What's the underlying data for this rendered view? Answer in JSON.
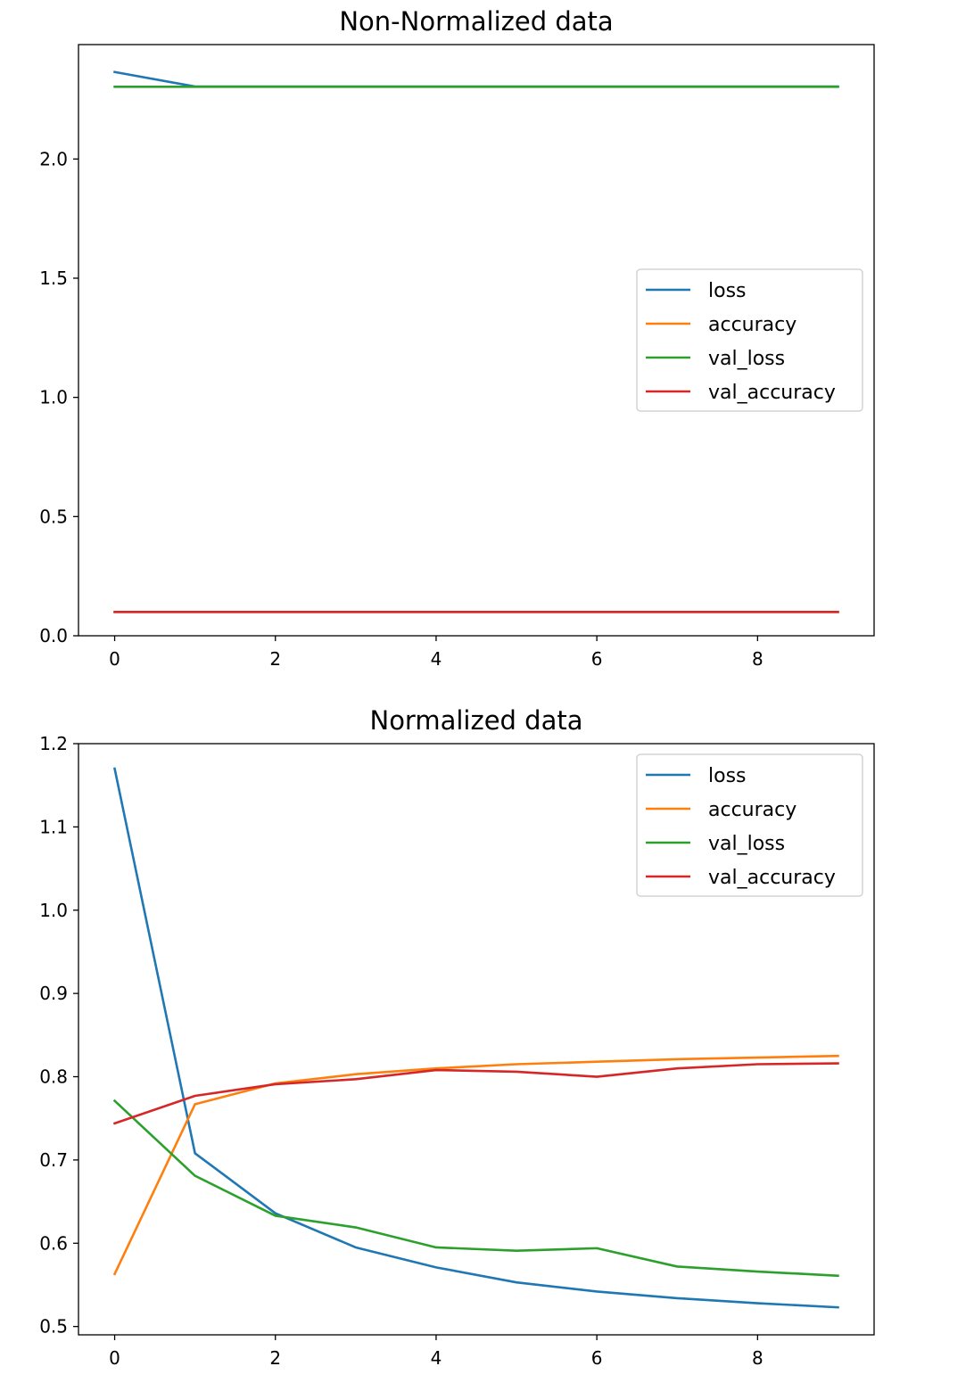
{
  "chart_data": [
    {
      "type": "line",
      "title": "Non-Normalized data",
      "xlabel": "",
      "ylabel": "",
      "x": [
        0,
        1,
        2,
        3,
        4,
        5,
        6,
        7,
        8,
        9
      ],
      "xlim": [
        -0.45,
        9.45
      ],
      "ylim": [
        0,
        2.48
      ],
      "xticks": [
        0,
        2,
        4,
        6,
        8
      ],
      "yticks": [
        0.0,
        0.5,
        1.0,
        1.5,
        2.0
      ],
      "xtick_labels": [
        "0",
        "2",
        "4",
        "6",
        "8"
      ],
      "ytick_labels": [
        "0.0",
        "0.5",
        "1.0",
        "1.5",
        "2.0"
      ],
      "grid": false,
      "legend_position": "center-right",
      "series": [
        {
          "name": "loss",
          "color": "#1f77b4",
          "values": [
            2.365,
            2.304,
            2.304,
            2.304,
            2.304,
            2.304,
            2.304,
            2.304,
            2.304,
            2.304
          ]
        },
        {
          "name": "accuracy",
          "color": "#ff7f0e",
          "values": [
            0.1,
            0.1,
            0.1,
            0.1,
            0.1,
            0.1,
            0.1,
            0.1,
            0.1,
            0.1
          ]
        },
        {
          "name": "val_loss",
          "color": "#2ca02c",
          "values": [
            2.303,
            2.303,
            2.303,
            2.303,
            2.303,
            2.303,
            2.303,
            2.303,
            2.303,
            2.303
          ]
        },
        {
          "name": "val_accuracy",
          "color": "#d62728",
          "values": [
            0.1,
            0.1,
            0.1,
            0.1,
            0.1,
            0.1,
            0.1,
            0.1,
            0.1,
            0.1
          ]
        }
      ]
    },
    {
      "type": "line",
      "title": "Normalized data",
      "xlabel": "",
      "ylabel": "",
      "x": [
        0,
        1,
        2,
        3,
        4,
        5,
        6,
        7,
        8,
        9
      ],
      "xlim": [
        -0.45,
        9.45
      ],
      "ylim": [
        0.49,
        1.2
      ],
      "xticks": [
        0,
        2,
        4,
        6,
        8
      ],
      "yticks": [
        0.5,
        0.6,
        0.7,
        0.8,
        0.9,
        1.0,
        1.1,
        1.2
      ],
      "xtick_labels": [
        "0",
        "2",
        "4",
        "6",
        "8"
      ],
      "ytick_labels": [
        "0.5",
        "0.6",
        "0.7",
        "0.8",
        "0.9",
        "1.0",
        "1.1",
        "1.2"
      ],
      "grid": false,
      "legend_position": "upper-right",
      "series": [
        {
          "name": "loss",
          "color": "#1f77b4",
          "values": [
            1.17,
            0.708,
            0.636,
            0.595,
            0.571,
            0.553,
            0.542,
            0.534,
            0.528,
            0.523
          ]
        },
        {
          "name": "accuracy",
          "color": "#ff7f0e",
          "values": [
            0.563,
            0.767,
            0.792,
            0.803,
            0.81,
            0.815,
            0.818,
            0.821,
            0.823,
            0.825
          ]
        },
        {
          "name": "val_loss",
          "color": "#2ca02c",
          "values": [
            0.771,
            0.681,
            0.633,
            0.619,
            0.595,
            0.591,
            0.594,
            0.572,
            0.566,
            0.561
          ]
        },
        {
          "name": "val_accuracy",
          "color": "#d62728",
          "values": [
            0.744,
            0.777,
            0.791,
            0.797,
            0.808,
            0.806,
            0.8,
            0.81,
            0.815,
            0.816
          ]
        }
      ]
    }
  ]
}
